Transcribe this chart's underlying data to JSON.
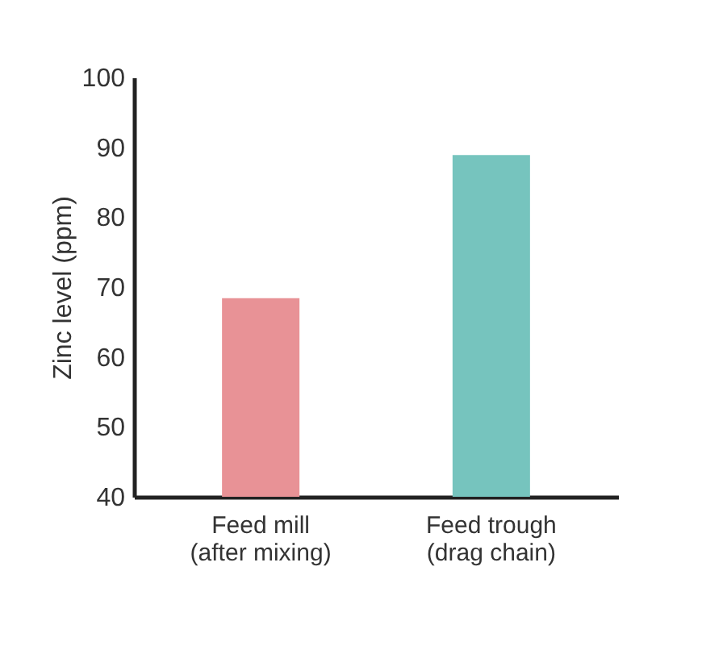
{
  "chart_data": {
    "type": "bar",
    "ylabel": "Zinc level (ppm)",
    "categories": [
      "Feed mill\n(after mixing)",
      "Feed trough\n(drag chain)"
    ],
    "values": [
      68.4,
      88.9
    ],
    "colors": [
      "#e89296",
      "#76c4be"
    ],
    "ylim": [
      40,
      100
    ],
    "yticks": [
      40,
      50,
      60,
      70,
      80,
      90,
      100
    ],
    "grid": false
  }
}
